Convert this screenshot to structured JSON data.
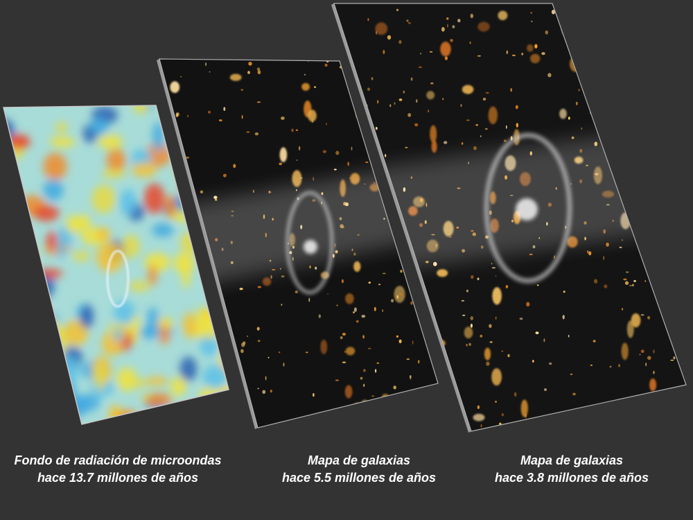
{
  "captions": [
    {
      "line1": "Fondo de radiación de microondas",
      "line2": "hace 13.7 millones de años"
    },
    {
      "line1": "Mapa de galaxias",
      "line2": "hace 5.5 millones de años"
    },
    {
      "line1": "Mapa de galaxias",
      "line2": "hace 3.8 millones de años"
    }
  ]
}
